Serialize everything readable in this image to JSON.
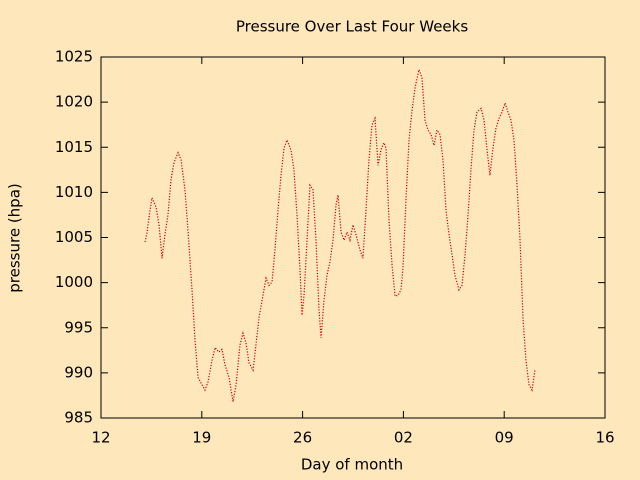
{
  "chart_data": {
    "type": "line",
    "title": "Pressure Over Last Four Weeks",
    "x_label": "Day of month",
    "y_label": "pressure (hpa)",
    "xlim": [
      12,
      47
    ],
    "xticks": [
      12,
      19,
      26,
      {
        "value": 33,
        "label": "02"
      },
      {
        "value": 40,
        "label": "09"
      },
      {
        "value": 47,
        "label": "16"
      }
    ],
    "ylim": [
      985,
      1025
    ],
    "yticks": [
      985,
      990,
      995,
      1000,
      1005,
      1010,
      1015,
      1020,
      1025
    ],
    "series": [
      {
        "color": "#cc0000",
        "x": [
          15.06,
          15.19,
          15.4,
          15.54,
          15.82,
          16.03,
          16.24,
          16.44,
          16.65,
          16.86,
          17.07,
          17.35,
          17.56,
          17.83,
          18.04,
          18.32,
          18.53,
          18.74,
          19.01,
          19.22,
          19.43,
          19.71,
          19.92,
          20.19,
          20.4,
          20.61,
          20.89,
          21.17,
          21.38,
          21.65,
          21.86,
          22.07,
          22.28,
          22.56,
          22.76,
          22.97,
          23.25,
          23.46,
          23.67,
          23.88,
          24.08,
          24.29,
          24.5,
          24.71,
          24.92,
          25.19,
          25.4,
          25.61,
          25.82,
          25.96,
          26.1,
          26.31,
          26.51,
          26.72,
          26.93,
          27.14,
          27.28,
          27.49,
          27.69,
          27.9,
          28.11,
          28.32,
          28.46,
          28.67,
          28.88,
          29.08,
          29.29,
          29.5,
          29.71,
          29.99,
          30.19,
          30.4,
          30.61,
          30.82,
          31.03,
          31.24,
          31.44,
          31.65,
          31.79,
          32.0,
          32.21,
          32.42,
          32.63,
          32.83,
          32.97,
          33.18,
          33.39,
          33.6,
          33.81,
          34.08,
          34.29,
          34.5,
          34.71,
          34.92,
          35.13,
          35.33,
          35.54,
          35.75,
          35.96,
          36.17,
          36.38,
          36.58,
          36.86,
          37.07,
          37.28,
          37.49,
          37.69,
          37.9,
          38.11,
          38.39,
          38.6,
          38.81,
          39.01,
          39.22,
          39.43,
          39.64,
          39.85,
          40.06,
          40.26,
          40.47,
          40.68,
          40.89,
          41.1,
          41.31,
          41.51,
          41.72,
          41.93,
          42.14
        ],
        "values": [
          1004.5,
          1005.5,
          1008,
          1009.4,
          1008.4,
          1006.4,
          1002.7,
          1005.3,
          1007.5,
          1011.4,
          1013.3,
          1014.4,
          1013.6,
          1010.3,
          1005.8,
          999.2,
          993.6,
          989.5,
          988.7,
          988.1,
          989,
          991.4,
          992.8,
          992.3,
          992.6,
          990.9,
          989.5,
          986.8,
          988.7,
          993.1,
          994.4,
          993.3,
          991.1,
          990.3,
          993.1,
          996.1,
          998.6,
          1000.5,
          999.7,
          1000.1,
          1003.6,
          1008,
          1011.9,
          1014.9,
          1015.8,
          1014.7,
          1012.5,
          1007.5,
          1001.4,
          996.4,
          998.6,
          1004.7,
          1010.8,
          1010.3,
          1004.7,
          997,
          993.9,
          998.1,
          1000.8,
          1002.3,
          1004.7,
          1008.6,
          1009.7,
          1005.6,
          1004.7,
          1005.6,
          1004.7,
          1006.4,
          1005.3,
          1003.6,
          1002.7,
          1008,
          1013.6,
          1017.5,
          1018.2,
          1013,
          1014.7,
          1015.5,
          1014.9,
          1006.9,
          1002,
          998.5,
          998.6,
          999.2,
          1001.6,
          1009.2,
          1015.8,
          1019.1,
          1021.6,
          1023.6,
          1022.7,
          1018,
          1016.9,
          1016.4,
          1015.2,
          1016.9,
          1016.4,
          1013.6,
          1008,
          1005.3,
          1003.1,
          1000.8,
          999.2,
          999.7,
          1003.1,
          1007.5,
          1012.5,
          1016.9,
          1018.9,
          1019.3,
          1018,
          1014.7,
          1011.9,
          1014.9,
          1017.1,
          1018.2,
          1018.9,
          1019.9,
          1018.9,
          1018,
          1015.8,
          1010.8,
          1004.7,
          995.9,
          991.4,
          988.7,
          988.1,
          990.3
        ]
      }
    ]
  }
}
